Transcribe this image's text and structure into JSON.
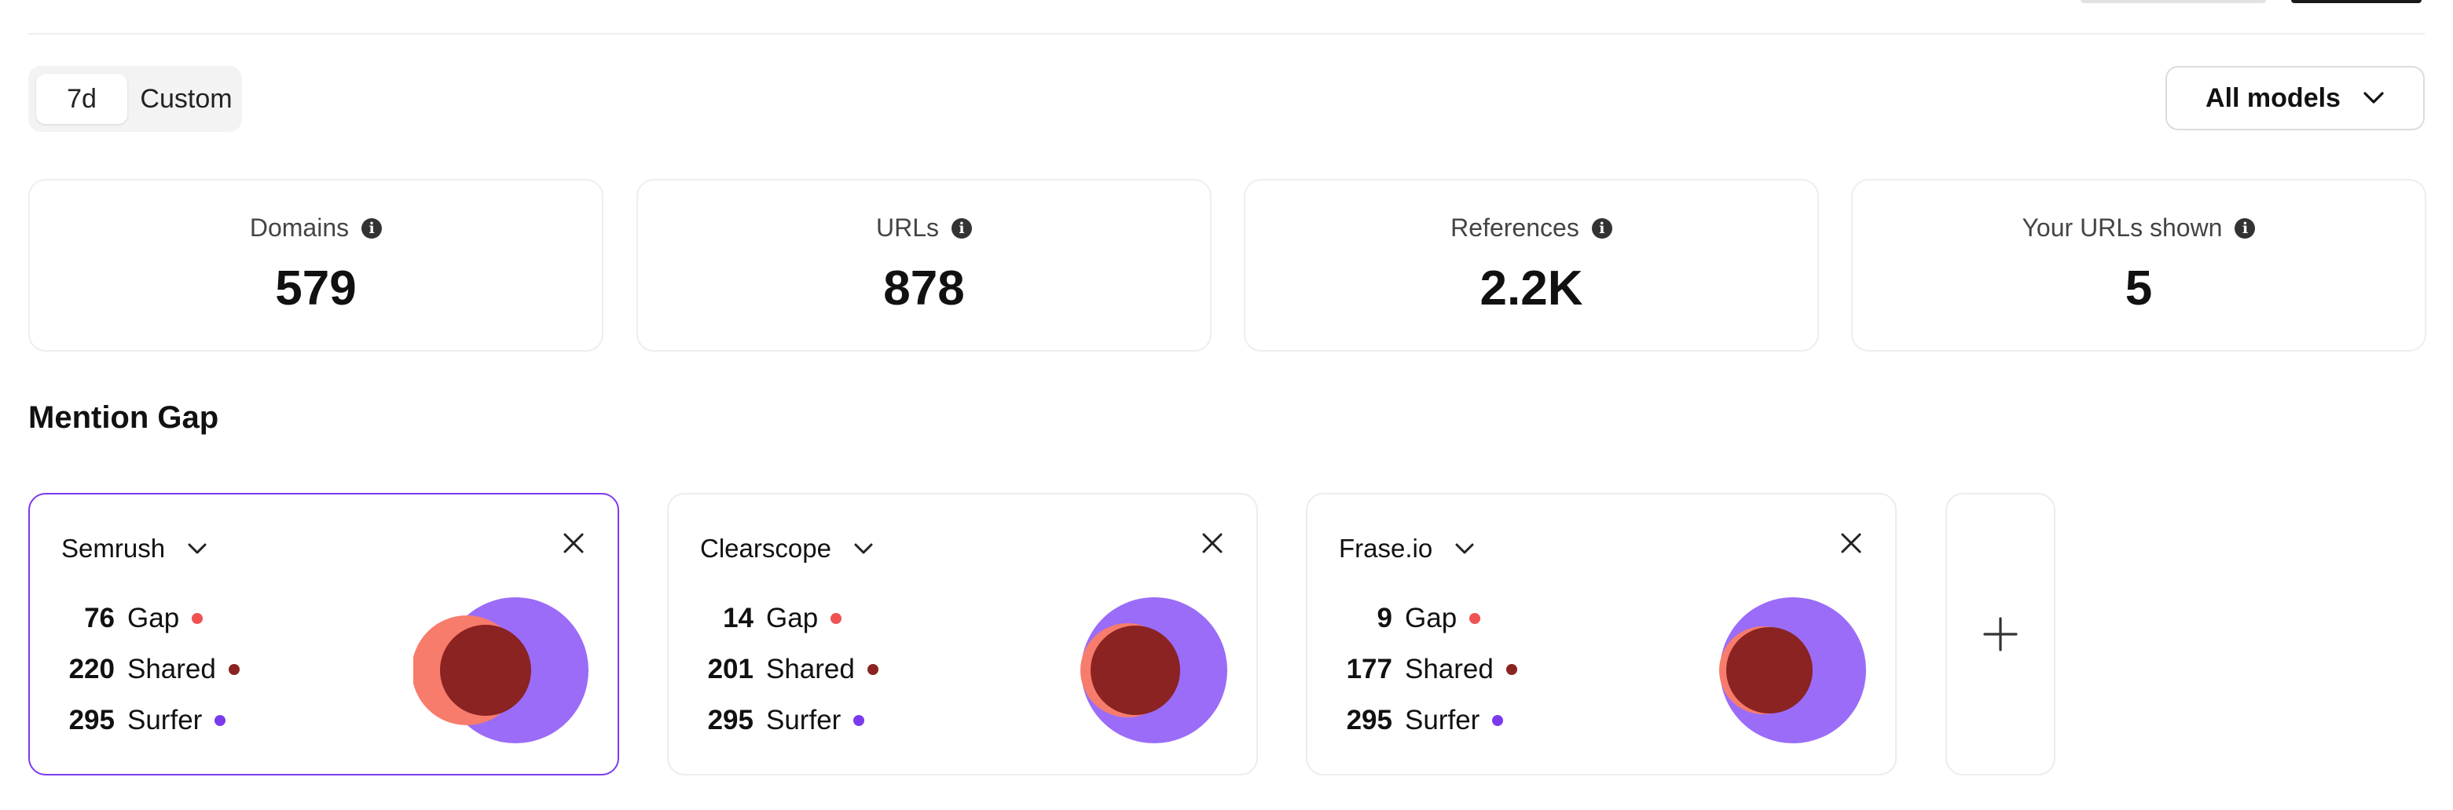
{
  "period_toggle": {
    "options": [
      "7d",
      "Custom"
    ],
    "selected": "7d"
  },
  "models_dropdown": {
    "label": "All models"
  },
  "stats": [
    {
      "label": "Domains",
      "value": "579"
    },
    {
      "label": "URLs",
      "value": "878"
    },
    {
      "label": "References",
      "value": "2.2K"
    },
    {
      "label": "Your URLs shown",
      "value": "5"
    }
  ],
  "mention_gap": {
    "title": "Mention Gap",
    "legend_labels": {
      "gap": "Gap",
      "shared": "Shared",
      "surfer": "Surfer"
    },
    "colors": {
      "gap": "#f87171",
      "shared": "#8b2323",
      "surfer": "#8b5cf6"
    },
    "comparisons": [
      {
        "competitor": "Semrush",
        "gap": 76,
        "shared": 220,
        "surfer": 295,
        "selected": true
      },
      {
        "competitor": "Clearscope",
        "gap": 14,
        "shared": 201,
        "surfer": 295,
        "selected": false
      },
      {
        "competitor": "Frase.io",
        "gap": 9,
        "shared": 177,
        "surfer": 295,
        "selected": false
      }
    ]
  }
}
